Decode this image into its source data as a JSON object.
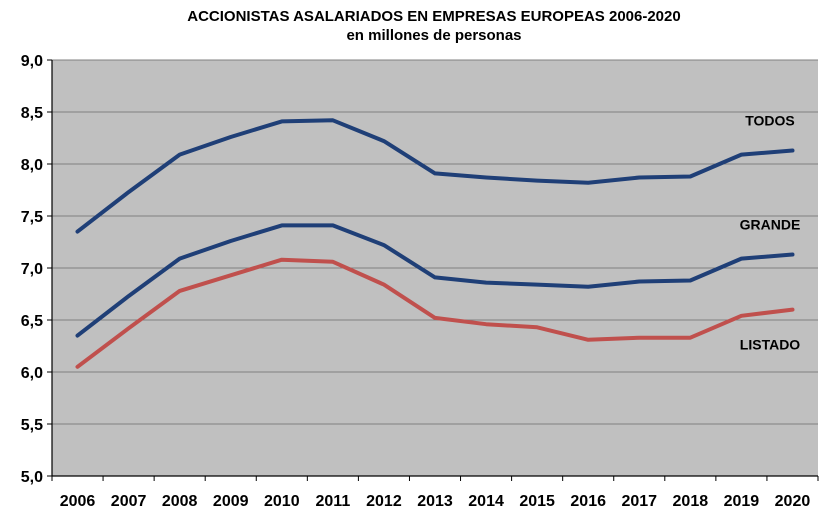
{
  "chart_data": {
    "type": "line",
    "title": "ACCIONISTAS ASALARIADOS EN EMPRESAS EUROPEAS 2006-2020",
    "subtitle": "en millones de personas",
    "categories": [
      "2006",
      "2007",
      "2008",
      "2009",
      "2010",
      "2011",
      "2012",
      "2013",
      "2014",
      "2015",
      "2016",
      "2017",
      "2018",
      "2019",
      "2020"
    ],
    "ylim": [
      5.0,
      9.0
    ],
    "yticks": [
      "5,0",
      "5,5",
      "6,0",
      "6,5",
      "7,0",
      "7,5",
      "8,0",
      "8,5",
      "9,0"
    ],
    "grid": true,
    "series": [
      {
        "name": "TODOS",
        "color": "#1F3F77",
        "values": [
          7.35,
          7.73,
          8.09,
          8.26,
          8.41,
          8.42,
          8.22,
          7.91,
          7.87,
          7.84,
          7.82,
          7.87,
          7.88,
          8.09,
          8.13
        ]
      },
      {
        "name": "GRANDE",
        "color": "#1F3F77",
        "values": [
          6.35,
          6.73,
          7.09,
          7.26,
          7.41,
          7.41,
          7.22,
          6.91,
          6.86,
          6.84,
          6.82,
          6.87,
          6.88,
          7.09,
          7.13
        ]
      },
      {
        "name": "LISTADO",
        "color": "#C0504D",
        "values": [
          6.05,
          6.42,
          6.78,
          6.93,
          7.08,
          7.06,
          6.84,
          6.52,
          6.46,
          6.43,
          6.31,
          6.33,
          6.33,
          6.54,
          6.6
        ]
      }
    ]
  },
  "colors": {
    "plot_bg": "#C0C0C0",
    "grid": "#808080",
    "axis": "#000000"
  }
}
